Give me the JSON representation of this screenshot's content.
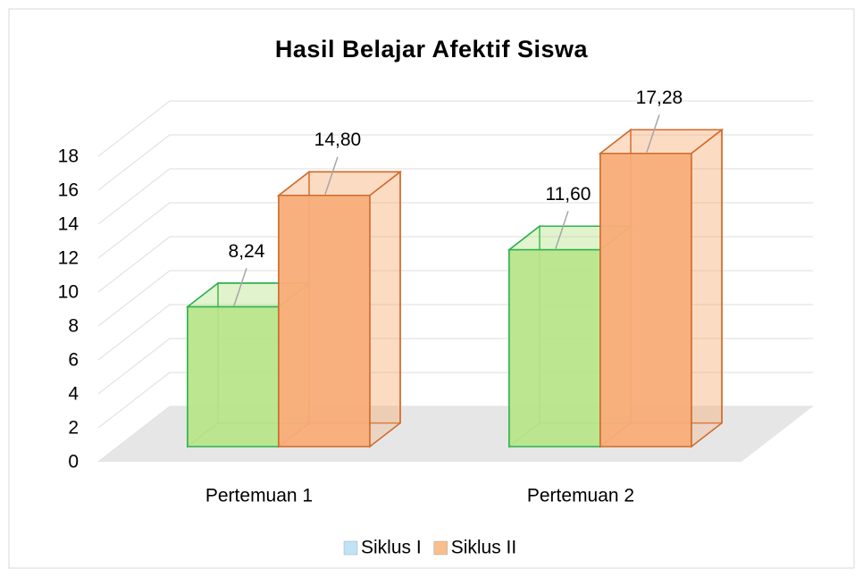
{
  "chart_data": {
    "type": "bar3d",
    "title": "Hasil Belajar Afektif Siswa",
    "categories": [
      "Pertemuan 1",
      "Pertemuan 2"
    ],
    "series": [
      {
        "name": "Siklus I",
        "color": "#b8e58a",
        "edge_color": "#2bb24c",
        "legend_color": "#bfe3f7",
        "values": [
          8.24,
          11.6
        ],
        "value_labels": [
          "8,24",
          "11,60"
        ]
      },
      {
        "name": "Siklus II",
        "color": "#f8ad78",
        "edge_color": "#cf6a2a",
        "legend_color": "#f8be8e",
        "values": [
          14.8,
          17.28
        ],
        "value_labels": [
          "14,80",
          "17,28"
        ]
      }
    ],
    "ylim": [
      0,
      18
    ],
    "yticks": [
      0,
      2,
      4,
      6,
      8,
      10,
      12,
      14,
      16,
      18
    ],
    "grid": true,
    "legend": "bottom"
  }
}
